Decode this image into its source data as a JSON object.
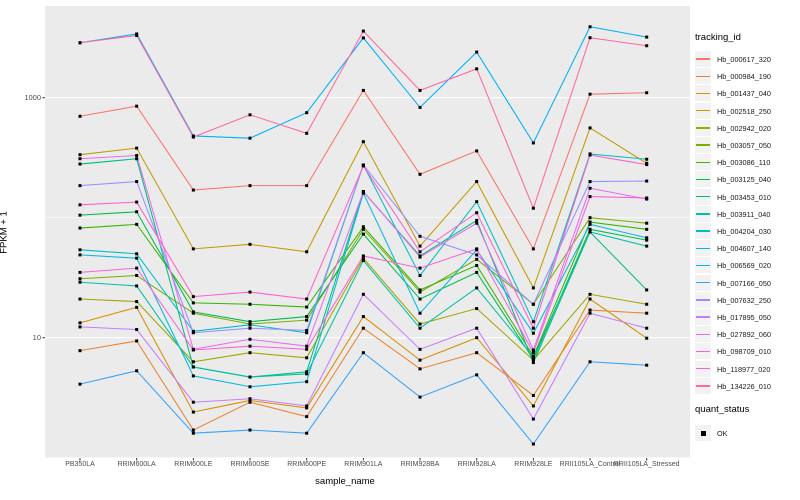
{
  "figure": {
    "background": "#FFFFFF",
    "panel_background": "#EBEBEB",
    "grid_color": "#FFFFFF",
    "point_color": "#000000",
    "tick_text_color": "#4D4D4D"
  },
  "axes": {
    "x": {
      "label": "sample_name"
    },
    "y": {
      "label": "FPKM + 1",
      "tick_labels": [
        "1000",
        "10"
      ],
      "tick_values": [
        1000,
        10
      ],
      "unlabeled_gridlines": [
        100,
        1
      ]
    }
  },
  "legend": {
    "tracking_title": "tracking_id",
    "quant_title": "quant_status",
    "quant_items": [
      {
        "label": "OK",
        "marker": "black-square"
      }
    ]
  },
  "chart_data": {
    "type": "line",
    "title": "",
    "xlabel": "sample_name",
    "ylabel": "FPKM + 1",
    "y_scale": "log10",
    "ylim": [
      1,
      5800
    ],
    "grid": "on",
    "legend_position": "right",
    "marker": "black-square",
    "categories": [
      "PB350LA",
      "RRIM600LA",
      "RRIM600LE",
      "RRIM600SE",
      "RRIM600PE",
      "RRIM901LA",
      "RRIM928BA",
      "RRIM928LA",
      "RRIM928LE",
      "RRII105LA_Control",
      "RRII105LA_Stressed"
    ],
    "series": [
      {
        "name": "Hb_000617_320",
        "color": "#F8766D",
        "values": [
          700,
          850,
          170,
          185,
          185,
          1150,
          230,
          360,
          55,
          1070,
          1100
        ]
      },
      {
        "name": "Hb_000984_190",
        "color": "#EA8331",
        "values": [
          7.8,
          9.4,
          1.7,
          2.9,
          2.2,
          12,
          5.5,
          7.5,
          3.3,
          17,
          16
        ]
      },
      {
        "name": "Hb_001437_040",
        "color": "#D89000",
        "values": [
          13.3,
          17.9,
          2.4,
          3.0,
          2.6,
          15,
          6.5,
          10,
          2.7,
          21,
          9.9
        ]
      },
      {
        "name": "Hb_002518_250",
        "color": "#C09B00",
        "values": [
          335,
          380,
          55,
          60,
          52,
          430,
          58,
          200,
          26,
          560,
          284
        ]
      },
      {
        "name": "Hb_002942_020",
        "color": "#A3A500",
        "values": [
          21,
          20,
          6.3,
          7.5,
          6.8,
          46,
          13,
          17.5,
          6.5,
          23,
          19
        ]
      },
      {
        "name": "Hb_003057_050",
        "color": "#7CAE00",
        "values": [
          31,
          33,
          16,
          13,
          14,
          80,
          24,
          45,
          19,
          100,
          90
        ]
      },
      {
        "name": "Hb_003086_110",
        "color": "#39B600",
        "values": [
          82,
          88,
          19.5,
          19,
          18,
          84,
          25,
          40,
          7,
          92,
          80
        ]
      },
      {
        "name": "Hb_003125_040",
        "color": "#00BB4E",
        "values": [
          105,
          112,
          16.4,
          13.6,
          15,
          73,
          21,
          35,
          6.6,
          80,
          65
        ]
      },
      {
        "name": "Hb_003453_010",
        "color": "#00BF7D",
        "values": [
          280,
          310,
          5.7,
          4.7,
          5.2,
          165,
          48,
          95,
          6.2,
          76,
          25
        ]
      },
      {
        "name": "Hb_003911_040",
        "color": "#00C1A3",
        "values": [
          29,
          27,
          5.7,
          4.7,
          5.0,
          44,
          12,
          26,
          6.9,
          76,
          58
        ]
      },
      {
        "name": "Hb_004204_030",
        "color": "#00BFC4",
        "values": [
          54,
          50,
          11.3,
          12.8,
          11,
          275,
          33,
          136,
          13.6,
          340,
          307
        ]
      },
      {
        "name": "Hb_004607_140",
        "color": "#00BAE0",
        "values": [
          49,
          46,
          4.8,
          3.9,
          4.3,
          160,
          16,
          54,
          10.9,
          88,
          68
        ]
      },
      {
        "name": "Hb_006569_020",
        "color": "#00B0F6",
        "values": [
          2870,
          3400,
          480,
          460,
          750,
          3150,
          830,
          2400,
          420,
          3900,
          3200
        ]
      },
      {
        "name": "Hb_007166_050",
        "color": "#35A2FF",
        "values": [
          4.1,
          5.3,
          1.6,
          1.7,
          1.6,
          7.5,
          3.2,
          4.9,
          1.3,
          6.3,
          5.9
        ]
      },
      {
        "name": "Hb_007632_250",
        "color": "#9590FF",
        "values": [
          185,
          200,
          11,
          12,
          11.5,
          275,
          70,
          49,
          19,
          200,
          202
        ]
      },
      {
        "name": "Hb_017895_050",
        "color": "#C77CFF",
        "values": [
          12.3,
          11.7,
          2.9,
          3.1,
          2.7,
          23,
          8,
          12,
          2.1,
          16,
          12
        ]
      },
      {
        "name": "Hb_027892_060",
        "color": "#E76BF3",
        "values": [
          310,
          330,
          8,
          9.7,
          8.5,
          165,
          47,
          90,
          7.9,
          176,
          143
        ]
      },
      {
        "name": "Hb_098709_010",
        "color": "#FA62DB",
        "values": [
          35,
          38,
          7.9,
          8.5,
          8.0,
          48,
          38,
          55,
          7.5,
          150,
          146
        ]
      },
      {
        "name": "Hb_118977_020",
        "color": "#FF61CC",
        "values": [
          128,
          135,
          22,
          24,
          21,
          270,
          52,
          110,
          12,
          333,
          277
        ]
      },
      {
        "name": "Hb_134226_010",
        "color": "#FF67A4",
        "values": [
          2870,
          3300,
          470,
          720,
          505,
          3590,
          1150,
          1740,
          120,
          3160,
          2710
        ]
      }
    ]
  }
}
